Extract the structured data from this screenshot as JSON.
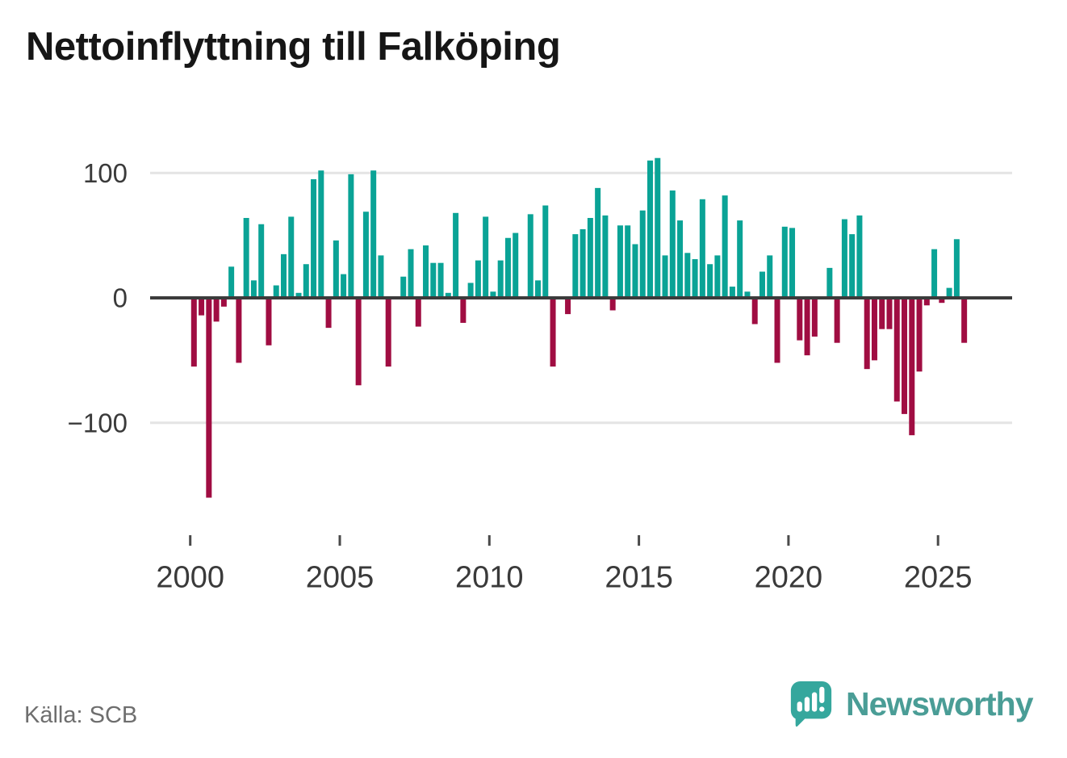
{
  "header": {
    "title": "Nettoinflyttning till Falköping"
  },
  "footer": {
    "source_label": "Källa: SCB",
    "brand": "Newsworthy"
  },
  "chart_data": {
    "type": "bar",
    "title": "Nettoinflyttning till Falköping",
    "xlabel": "",
    "ylabel": "",
    "period": "quarterly",
    "grid": "horizontal",
    "ylim": [
      -175,
      125
    ],
    "colors": {
      "positive": "#0aa396",
      "negative": "#a00d42"
    },
    "y_ticks": [
      {
        "value": 100,
        "label": "100"
      },
      {
        "value": 0,
        "label": "0"
      },
      {
        "value": -100,
        "label": "−100"
      }
    ],
    "x_ticks": [
      {
        "value": 2000,
        "label": "2000"
      },
      {
        "value": 2005,
        "label": "2005"
      },
      {
        "value": 2010,
        "label": "2010"
      },
      {
        "value": 2015,
        "label": "2015"
      },
      {
        "value": 2020,
        "label": "2020"
      },
      {
        "value": 2025,
        "label": "2025"
      }
    ],
    "categories": [
      "2000Q1",
      "2000Q2",
      "2000Q3",
      "2000Q4",
      "2001Q1",
      "2001Q2",
      "2001Q3",
      "2001Q4",
      "2002Q1",
      "2002Q2",
      "2002Q3",
      "2002Q4",
      "2003Q1",
      "2003Q2",
      "2003Q3",
      "2003Q4",
      "2004Q1",
      "2004Q2",
      "2004Q3",
      "2004Q4",
      "2005Q1",
      "2005Q2",
      "2005Q3",
      "2005Q4",
      "2006Q1",
      "2006Q2",
      "2006Q3",
      "2006Q4",
      "2007Q1",
      "2007Q2",
      "2007Q3",
      "2007Q4",
      "2008Q1",
      "2008Q2",
      "2008Q3",
      "2008Q4",
      "2009Q1",
      "2009Q2",
      "2009Q3",
      "2009Q4",
      "2010Q1",
      "2010Q2",
      "2010Q3",
      "2010Q4",
      "2011Q1",
      "2011Q2",
      "2011Q3",
      "2011Q4",
      "2012Q1",
      "2012Q2",
      "2012Q3",
      "2012Q4",
      "2013Q1",
      "2013Q2",
      "2013Q3",
      "2013Q4",
      "2014Q1",
      "2014Q2",
      "2014Q3",
      "2014Q4",
      "2015Q1",
      "2015Q2",
      "2015Q3",
      "2015Q4",
      "2016Q1",
      "2016Q2",
      "2016Q3",
      "2016Q4",
      "2017Q1",
      "2017Q2",
      "2017Q3",
      "2017Q4",
      "2018Q1",
      "2018Q2",
      "2018Q3",
      "2018Q4",
      "2019Q1",
      "2019Q2",
      "2019Q3",
      "2019Q4",
      "2020Q1",
      "2020Q2",
      "2020Q3",
      "2020Q4",
      "2021Q1",
      "2021Q2",
      "2021Q3",
      "2021Q4",
      "2022Q1",
      "2022Q2",
      "2022Q3",
      "2022Q4",
      "2023Q1",
      "2023Q2",
      "2023Q3",
      "2023Q4",
      "2024Q1",
      "2024Q2",
      "2024Q3",
      "2024Q4",
      "2025Q1",
      "2025Q2",
      "2025Q3",
      "2025Q4"
    ],
    "values": [
      -55,
      -14,
      -160,
      -19,
      -7,
      25,
      -52,
      64,
      14,
      59,
      -38,
      10,
      35,
      65,
      4,
      27,
      95,
      102,
      -24,
      46,
      19,
      99,
      -70,
      69,
      102,
      34,
      -55,
      0,
      17,
      39,
      -23,
      42,
      28,
      28,
      4,
      68,
      -20,
      12,
      30,
      65,
      5,
      30,
      48,
      52,
      0,
      67,
      14,
      74,
      -55,
      0,
      -13,
      51,
      55,
      64,
      88,
      66,
      -10,
      58,
      58,
      43,
      70,
      110,
      112,
      34,
      86,
      62,
      36,
      31,
      79,
      27,
      34,
      82,
      9,
      62,
      5,
      -21,
      21,
      34,
      -52,
      57,
      56,
      -34,
      -46,
      -31,
      0,
      24,
      -36,
      63,
      51,
      66,
      -57,
      -50,
      -25,
      -25,
      -83,
      -93,
      -110,
      -59,
      -6,
      39,
      -4,
      8,
      47,
      -36
    ]
  }
}
